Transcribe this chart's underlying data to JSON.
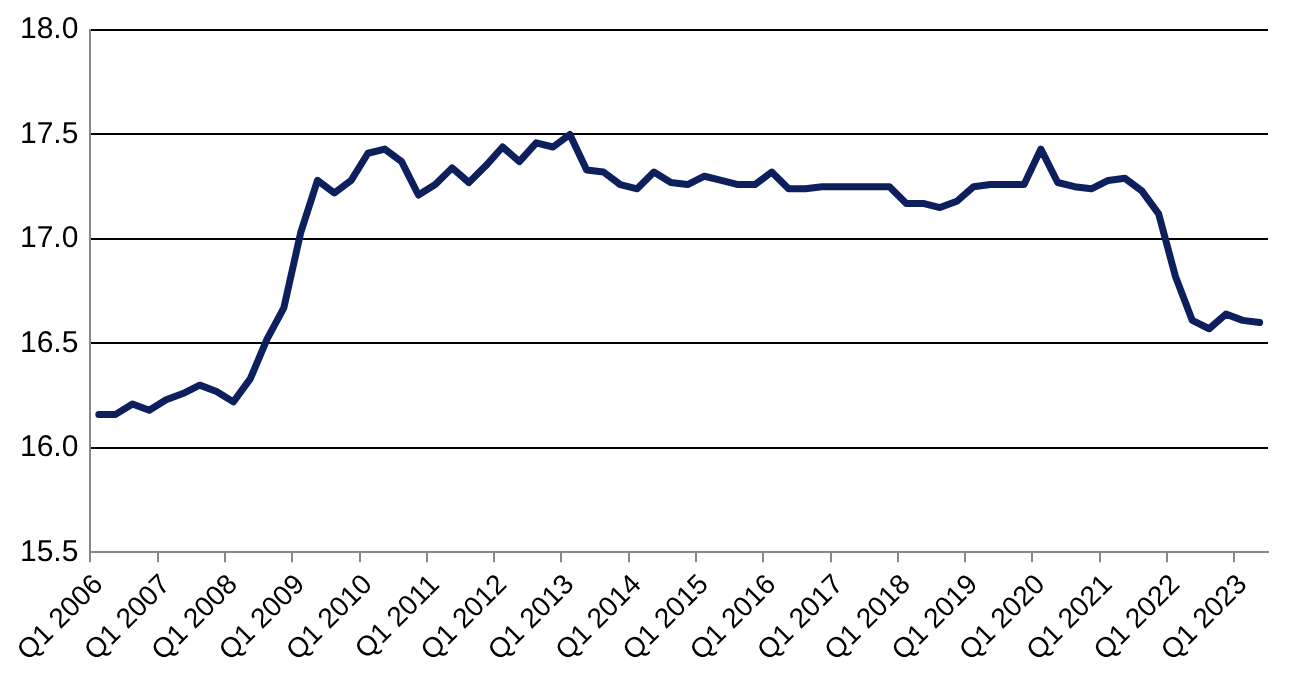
{
  "chart_data": {
    "type": "line",
    "categories": [
      "Q1 2006",
      null,
      null,
      null,
      "Q1 2007",
      null,
      null,
      null,
      "Q1 2008",
      null,
      null,
      null,
      "Q1 2009",
      null,
      null,
      null,
      "Q1 2010",
      null,
      null,
      null,
      "Q1 2011",
      null,
      null,
      null,
      "Q1 2012",
      null,
      null,
      null,
      "Q1 2013",
      null,
      null,
      null,
      "Q1 2014",
      null,
      null,
      null,
      "Q1 2015",
      null,
      null,
      null,
      "Q1 2016",
      null,
      null,
      null,
      "Q1 2017",
      null,
      null,
      null,
      "Q1 2018",
      null,
      null,
      null,
      "Q1 2019",
      null,
      null,
      null,
      "Q1 2020",
      null,
      null,
      null,
      "Q1 2021",
      null,
      null,
      null,
      "Q1 2022",
      null,
      null,
      null,
      "Q1 2023",
      null
    ],
    "series": [
      {
        "color": "#0d1f5c",
        "values": [
          16.16,
          16.16,
          16.21,
          16.18,
          16.23,
          16.26,
          16.3,
          16.27,
          16.22,
          16.33,
          16.52,
          16.67,
          17.03,
          17.28,
          17.22,
          17.28,
          17.41,
          17.43,
          17.37,
          17.21,
          17.26,
          17.34,
          17.27,
          17.35,
          17.44,
          17.37,
          17.46,
          17.44,
          17.5,
          17.33,
          17.32,
          17.26,
          17.24,
          17.32,
          17.27,
          17.26,
          17.3,
          17.28,
          17.26,
          17.26,
          17.32,
          17.24,
          17.24,
          17.25,
          17.25,
          17.25,
          17.25,
          17.25,
          17.17,
          17.17,
          17.15,
          17.18,
          17.25,
          17.26,
          17.26,
          17.26,
          17.43,
          17.27,
          17.25,
          17.24,
          17.28,
          17.29,
          17.23,
          17.12,
          16.82,
          16.61,
          16.57,
          16.64,
          16.61,
          16.6
        ]
      }
    ],
    "ylim": [
      15.5,
      18
    ],
    "yticks": [
      {
        "value": 15.5,
        "label": "15.5"
      },
      {
        "value": 16,
        "label": "16.0"
      },
      {
        "value": 16.5,
        "label": "16.5"
      },
      {
        "value": 17,
        "label": "17.0"
      },
      {
        "value": 17.5,
        "label": "17.5"
      },
      {
        "value": 18,
        "label": "18.0"
      }
    ],
    "grid": "y",
    "legend": false,
    "marker": "none",
    "line_style": "solid"
  }
}
